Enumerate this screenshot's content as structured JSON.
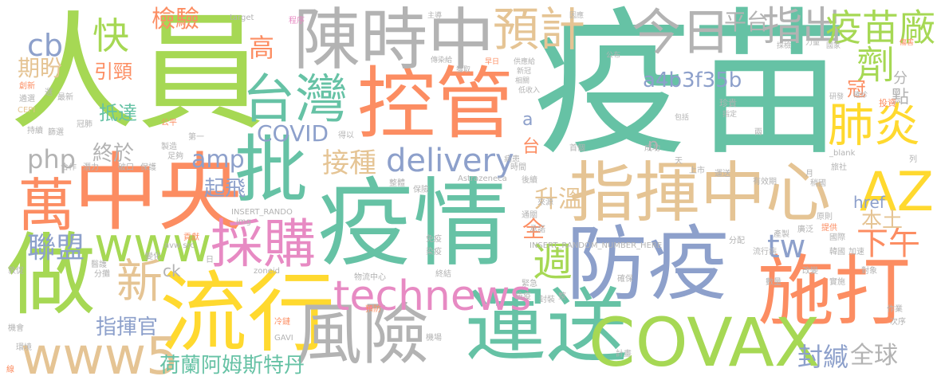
{
  "palette": {
    "green": "#66c2a5",
    "orange": "#fc8d62",
    "blue": "#8da0cb",
    "pink": "#e78ac3",
    "lime": "#a6d854",
    "yellow": "#ffd92f",
    "tan": "#e5c494",
    "gray": "#b3b3b3"
  },
  "words": [
    {
      "text": "疫苗",
      "color": "green"
    },
    {
      "text": "人員",
      "color": "lime"
    },
    {
      "text": "控管",
      "color": "orange"
    },
    {
      "text": "陳時中",
      "color": "gray"
    },
    {
      "text": "疫情",
      "color": "green"
    },
    {
      "text": "中央",
      "color": "orange"
    },
    {
      "text": "做",
      "color": "lime"
    },
    {
      "text": "流行",
      "color": "yellow"
    },
    {
      "text": "防疫",
      "color": "blue"
    },
    {
      "text": "指揮中心",
      "color": "tan"
    },
    {
      "text": "施打",
      "color": "orange"
    },
    {
      "text": "運送",
      "color": "green"
    },
    {
      "text": "風險",
      "color": "gray"
    },
    {
      "text": "批",
      "color": "green"
    },
    {
      "text": "台灣",
      "color": "green"
    },
    {
      "text": "採購",
      "color": "pink"
    },
    {
      "text": "COVAX",
      "color": "lime"
    },
    {
      "text": "預計",
      "color": "tan"
    },
    {
      "text": "今日",
      "color": "gray"
    },
    {
      "text": "指出",
      "color": "gray"
    },
    {
      "text": "疫苗廠",
      "color": "lime"
    },
    {
      "text": "劑",
      "color": "lime"
    },
    {
      "text": "肺炎",
      "color": "yellow"
    },
    {
      "text": "AZ",
      "color": "yellow"
    },
    {
      "text": "萬",
      "color": "orange"
    },
    {
      "text": "www",
      "color": "lime"
    },
    {
      "text": "technews",
      "color": "pink"
    },
    {
      "text": "www5",
      "color": "tan"
    },
    {
      "text": "新",
      "color": "tan"
    },
    {
      "text": "週",
      "color": "lime"
    },
    {
      "text": "下午",
      "color": "orange"
    },
    {
      "text": "tw",
      "color": "blue"
    },
    {
      "text": "快",
      "color": "lime"
    },
    {
      "text": "檢驗",
      "color": "orange"
    },
    {
      "text": "平台",
      "color": "gray"
    },
    {
      "text": "cb",
      "color": "blue"
    },
    {
      "text": "期盼",
      "color": "tan"
    },
    {
      "text": "引頸",
      "color": "orange"
    },
    {
      "text": "高",
      "color": "orange"
    },
    {
      "text": "抵達",
      "color": "green"
    },
    {
      "text": "COVID",
      "color": "blue"
    },
    {
      "text": "delivery",
      "color": "blue"
    },
    {
      "text": "接種",
      "color": "tan"
    },
    {
      "text": "amp",
      "color": "blue"
    },
    {
      "text": "php",
      "color": "gray"
    },
    {
      "text": "終於",
      "color": "gray"
    },
    {
      "text": "a4b3f35b",
      "color": "blue"
    },
    {
      "text": "聯盟",
      "color": "blue"
    },
    {
      "text": "起飛",
      "color": "blue"
    },
    {
      "text": "升溫",
      "color": "tan"
    },
    {
      "text": "全",
      "color": "orange"
    },
    {
      "text": "指揮官",
      "color": "blue"
    },
    {
      "text": "荷蘭阿姆斯特丹",
      "color": "green"
    },
    {
      "text": "封緘",
      "color": "blue"
    },
    {
      "text": "全球",
      "color": "gray"
    },
    {
      "text": "本土",
      "color": "tan"
    },
    {
      "text": "href",
      "color": "blue"
    },
    {
      "text": "冠",
      "color": "orange"
    },
    {
      "text": "點",
      "color": "gray"
    },
    {
      "text": "分",
      "color": "gray"
    },
    {
      "text": "a",
      "color": "blue"
    },
    {
      "text": "台",
      "color": "orange"
    },
    {
      "text": "n",
      "color": "gray"
    },
    {
      "text": "ck",
      "color": "gray"
    },
    {
      "text": "target",
      "color": "gray"
    },
    {
      "text": "程序",
      "color": "pink"
    },
    {
      "text": "主導",
      "color": "gray"
    },
    {
      "text": "因應",
      "color": "gray"
    },
    {
      "text": "公布",
      "color": "gray"
    },
    {
      "text": "傳染給",
      "color": "gray"
    },
    {
      "text": "早日",
      "color": "orange"
    },
    {
      "text": "供應給",
      "color": "gray"
    },
    {
      "text": "新冠",
      "color": "gray"
    },
    {
      "text": "獲取",
      "color": "gray"
    },
    {
      "text": "相關",
      "color": "gray"
    },
    {
      "text": "低收入",
      "color": "gray"
    },
    {
      "text": "珍貴",
      "color": "gray"
    },
    {
      "text": "指定",
      "color": "gray"
    },
    {
      "text": "包括",
      "color": "gray"
    },
    {
      "text": "研發",
      "color": "gray"
    },
    {
      "text": "確診",
      "color": "gray"
    },
    {
      "text": "投資",
      "color": "orange"
    },
    {
      "text": "國家",
      "color": "gray"
    },
    {
      "text": "力量",
      "color": "gray"
    },
    {
      "text": "傷害",
      "color": "orange"
    },
    {
      "text": "採檢",
      "color": "gray"
    },
    {
      "text": "創新",
      "color": "orange"
    },
    {
      "text": "遴選",
      "color": "gray"
    },
    {
      "text": "CEPI",
      "color": "tan"
    },
    {
      "text": "選",
      "color": "gray"
    },
    {
      "text": "最新",
      "color": "gray"
    },
    {
      "text": "持續",
      "color": "gray"
    },
    {
      "text": "篩選",
      "color": "gray"
    },
    {
      "text": "冠肺",
      "color": "gray"
    },
    {
      "text": "公平",
      "color": "orange"
    },
    {
      "text": "製造",
      "color": "gray"
    },
    {
      "text": "第一",
      "color": "gray"
    },
    {
      "text": "得以",
      "color": "gray"
    },
    {
      "text": "足夠",
      "color": "gray"
    },
    {
      "text": "合作",
      "color": "gray"
    },
    {
      "text": "潛力",
      "color": "gray"
    },
    {
      "text": "破口",
      "color": "gray"
    },
    {
      "text": "保護",
      "color": "gray"
    },
    {
      "text": "時間",
      "color": "gray"
    },
    {
      "text": "病患",
      "color": "gray"
    },
    {
      "text": "成功",
      "color": "gray"
    },
    {
      "text": "首個",
      "color": "gray"
    },
    {
      "text": "兩",
      "color": "gray"
    },
    {
      "text": "_blank",
      "color": "gray"
    },
    {
      "text": "列",
      "color": "gray"
    },
    {
      "text": "旅社",
      "color": "gray"
    },
    {
      "text": "月",
      "color": "gray"
    },
    {
      "text": "上市",
      "color": "gray"
    },
    {
      "text": "運送",
      "color": "gray"
    },
    {
      "text": "有效期",
      "color": "gray"
    },
    {
      "text": "稍國",
      "color": "gray"
    },
    {
      "text": "整體",
      "color": "gray"
    },
    {
      "text": "保險",
      "color": "gray"
    },
    {
      "text": "Astrazeneca",
      "color": "gray"
    },
    {
      "text": "後續",
      "color": "gray"
    },
    {
      "text": "通關",
      "color": "gray"
    },
    {
      "text": "來源",
      "color": "gray"
    },
    {
      "text": "承諾",
      "color": "gray"
    },
    {
      "text": "INSERT_RANDO",
      "color": "gray"
    },
    {
      "text": "INSERT_RANDOM_NUMBER_HERE",
      "color": "gray"
    },
    {
      "text": "img",
      "color": "gray"
    },
    {
      "text": "免疫",
      "color": "gray"
    },
    {
      "text": "染疫",
      "color": "gray"
    },
    {
      "text": "原則",
      "color": "gray"
    },
    {
      "text": "提供",
      "color": "orange"
    },
    {
      "text": "國際",
      "color": "gray"
    },
    {
      "text": "產製",
      "color": "gray"
    },
    {
      "text": "廣泛",
      "color": "gray"
    },
    {
      "text": "分配",
      "color": "gray"
    },
    {
      "text": "貢獻",
      "color": "orange"
    },
    {
      "text": "avw src",
      "color": "gray"
    },
    {
      "text": "醫護",
      "color": "gray"
    },
    {
      "text": "變化",
      "color": "gray"
    },
    {
      "text": "韓國",
      "color": "gray"
    },
    {
      "text": "加速",
      "color": "gray"
    },
    {
      "text": "流行病",
      "color": "gray"
    },
    {
      "text": "敦促",
      "color": "gray"
    },
    {
      "text": "分攤",
      "color": "gray"
    },
    {
      "text": "zoneid",
      "color": "gray"
    },
    {
      "text": "終結",
      "color": "gray"
    },
    {
      "text": "物流中心",
      "color": "gray"
    },
    {
      "text": "緊急",
      "color": "gray"
    },
    {
      "text": "確保",
      "color": "gray"
    },
    {
      "text": "改變",
      "color": "gray"
    },
    {
      "text": "數量",
      "color": "gray"
    },
    {
      "text": "實施",
      "color": "gray"
    },
    {
      "text": "對象",
      "color": "gray"
    },
    {
      "text": "預防",
      "color": "orange"
    },
    {
      "text": "檢疫",
      "color": "gray"
    },
    {
      "text": "封裝",
      "color": "gray"
    },
    {
      "text": "整",
      "color": "gray"
    },
    {
      "text": "冷鏈",
      "color": "orange"
    },
    {
      "text": "作業",
      "color": "gray"
    },
    {
      "text": "次序",
      "color": "gray"
    },
    {
      "text": "機會",
      "color": "gray"
    },
    {
      "text": "環境",
      "color": "gray"
    },
    {
      "text": "GAVI",
      "color": "gray"
    },
    {
      "text": "機場",
      "color": "gray"
    },
    {
      "text": "計畫",
      "color": "gray"
    },
    {
      "text": "線",
      "color": "orange"
    },
    {
      "text": "日",
      "color": "gray"
    },
    {
      "text": "天",
      "color": "gray"
    }
  ]
}
